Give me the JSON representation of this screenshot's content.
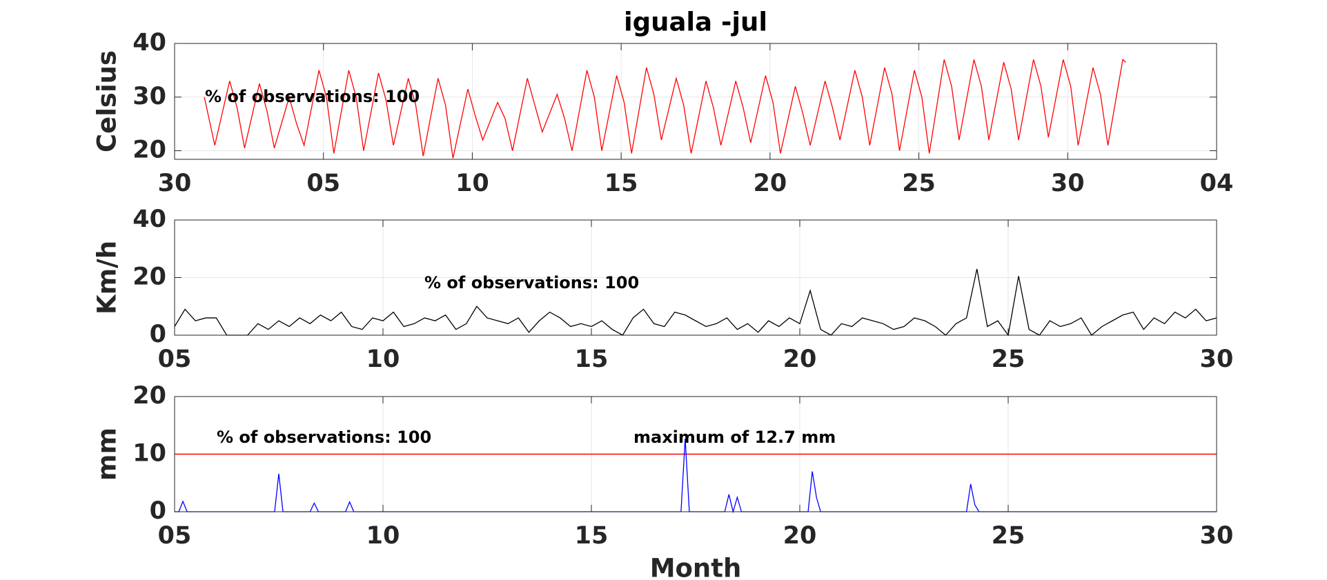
{
  "chart_data": [
    {
      "type": "line",
      "title": "iguala -jul",
      "ylabel": "Celsius",
      "annotations": [
        "% of observations: 100"
      ],
      "color": "#ff0000",
      "grid": true,
      "xlim": [
        0,
        35
      ],
      "xticks": [
        {
          "value": 0,
          "label": "30"
        },
        {
          "value": 5,
          "label": "05"
        },
        10,
        15,
        20,
        25,
        30,
        {
          "value": 35,
          "label": "04"
        }
      ],
      "ylim": [
        18.4,
        40
      ],
      "yticks": [
        20,
        30,
        40
      ],
      "x": [
        1,
        1.35,
        1.85,
        2.1,
        2.35,
        2.85,
        3.1,
        3.35,
        3.85,
        4.1,
        4.35,
        4.85,
        5.1,
        5.35,
        5.85,
        6.1,
        6.35,
        6.85,
        7.1,
        7.35,
        7.85,
        8.1,
        8.35,
        8.85,
        9.1,
        9.35,
        9.85,
        10.1,
        10.35,
        10.85,
        11.1,
        11.35,
        11.85,
        12.1,
        12.35,
        12.85,
        13.1,
        13.35,
        13.85,
        14.1,
        14.35,
        14.85,
        15.1,
        15.35,
        15.85,
        16.1,
        16.35,
        16.85,
        17.1,
        17.35,
        17.85,
        18.1,
        18.35,
        18.85,
        19.1,
        19.35,
        19.85,
        20.1,
        20.35,
        20.85,
        21.1,
        21.35,
        21.85,
        22.1,
        22.35,
        22.85,
        23.1,
        23.35,
        23.85,
        24.1,
        24.35,
        24.85,
        25.1,
        25.35,
        25.85,
        26.1,
        26.35,
        26.85,
        27.1,
        27.35,
        27.85,
        28.1,
        28.35,
        28.85,
        29.1,
        29.35,
        29.85,
        30.1,
        30.35,
        30.85,
        31.1,
        31.35,
        31.85,
        31.95
      ],
      "values": [
        30,
        21,
        33,
        28,
        20.5,
        32.5,
        27.5,
        20.5,
        30,
        25,
        21,
        35,
        30,
        19.5,
        35,
        30,
        20,
        34.5,
        29.5,
        21,
        33.5,
        28.5,
        19,
        33.5,
        28.5,
        18.6,
        31.5,
        26.5,
        22,
        29,
        26,
        20,
        33.5,
        28.5,
        23.5,
        30.5,
        26,
        20,
        35,
        30,
        20,
        34,
        29,
        19.5,
        35.5,
        30.5,
        22,
        33.5,
        28.5,
        19.5,
        33,
        28,
        21,
        33,
        28,
        21.5,
        34,
        29,
        19.5,
        32,
        27,
        21,
        33,
        28,
        22,
        35,
        30,
        21,
        35.5,
        30.5,
        20,
        35,
        30,
        19.5,
        37,
        32,
        22,
        37,
        32,
        22,
        36.5,
        31.5,
        22,
        37,
        32,
        22.5,
        37,
        32,
        21,
        35.5,
        30.5,
        21,
        37,
        36.5
      ]
    },
    {
      "type": "line",
      "ylabel": "Km/h",
      "annotations": [
        "% of observations: 100"
      ],
      "color": "#000000",
      "grid": true,
      "xlim": [
        5,
        30
      ],
      "xticks": [
        {
          "value": 5,
          "label": "05"
        },
        10,
        15,
        20,
        25,
        30
      ],
      "ylim": [
        0,
        40
      ],
      "yticks": [
        0,
        20,
        40
      ],
      "x": [
        5,
        5.25,
        5.5,
        5.75,
        6,
        6.25,
        6.5,
        6.75,
        7,
        7.25,
        7.5,
        7.75,
        8,
        8.25,
        8.5,
        8.75,
        9,
        9.25,
        9.5,
        9.75,
        10,
        10.25,
        10.5,
        10.75,
        11,
        11.25,
        11.5,
        11.75,
        12,
        12.25,
        12.5,
        12.75,
        13,
        13.25,
        13.5,
        13.75,
        14,
        14.25,
        14.5,
        14.75,
        15,
        15.25,
        15.5,
        15.75,
        16,
        16.25,
        16.5,
        16.75,
        17,
        17.25,
        17.5,
        17.75,
        18,
        18.25,
        18.5,
        18.75,
        19,
        19.25,
        19.5,
        19.75,
        20,
        20.25,
        20.5,
        20.75,
        21,
        21.25,
        21.5,
        21.75,
        22,
        22.25,
        22.5,
        22.75,
        23,
        23.25,
        23.5,
        23.75,
        24,
        24.25,
        24.5,
        24.75,
        25,
        25.25,
        25.5,
        25.75,
        26,
        26.25,
        26.5,
        26.75,
        27,
        27.25,
        27.5,
        27.75,
        28,
        28.25,
        28.5,
        28.75,
        29,
        29.25,
        29.5,
        29.75,
        30
      ],
      "values": [
        3,
        9,
        5,
        6,
        6,
        0,
        0,
        0,
        4,
        2,
        5,
        3,
        6,
        4,
        7,
        5,
        8,
        3,
        2,
        6,
        5,
        8,
        3,
        4,
        6,
        5,
        7,
        2,
        4,
        10,
        6,
        5,
        4,
        6,
        1,
        5,
        8,
        6,
        3,
        4,
        3,
        5,
        2,
        0,
        6,
        9,
        4,
        3,
        8,
        7,
        5,
        3,
        4,
        6,
        2,
        4,
        1,
        5,
        3,
        6,
        4,
        15.5,
        2,
        0,
        4,
        3,
        6,
        5,
        4,
        2,
        3,
        6,
        5,
        3,
        0,
        4,
        6,
        23,
        3,
        5,
        0,
        20.5,
        2,
        0,
        5,
        3,
        4,
        6,
        0,
        3,
        5,
        7,
        8,
        2,
        6,
        4,
        8,
        6,
        9,
        5,
        6
      ]
    },
    {
      "type": "line",
      "ylabel": "mm",
      "xlabel": "Month",
      "annotations": [
        "% of observations: 100",
        "maximum of 12.7 mm"
      ],
      "color": "#0000ff",
      "grid": true,
      "hline": 10,
      "hline_color": "#ff0000",
      "xlim": [
        5,
        30
      ],
      "xticks": [
        {
          "value": 5,
          "label": "05"
        },
        10,
        15,
        20,
        25,
        30
      ],
      "ylim": [
        0,
        20
      ],
      "yticks": [
        0,
        10,
        20
      ],
      "x": [
        5,
        5.1,
        5.2,
        5.3,
        7.4,
        7.5,
        7.6,
        8.25,
        8.35,
        8.45,
        9.1,
        9.2,
        9.3,
        17.15,
        17.25,
        17.35,
        18.2,
        18.3,
        18.4,
        18.5,
        18.6,
        20.2,
        20.3,
        20.4,
        20.5,
        24.0,
        24.1,
        24.2,
        24.3,
        30
      ],
      "values": [
        0,
        0,
        1.8,
        0,
        0,
        6.6,
        0,
        0,
        1.5,
        0,
        0,
        1.7,
        0,
        0,
        12.7,
        0,
        0,
        3,
        0,
        2.5,
        0,
        0,
        7,
        2.5,
        0,
        0,
        4.8,
        1.2,
        0,
        0
      ]
    }
  ]
}
